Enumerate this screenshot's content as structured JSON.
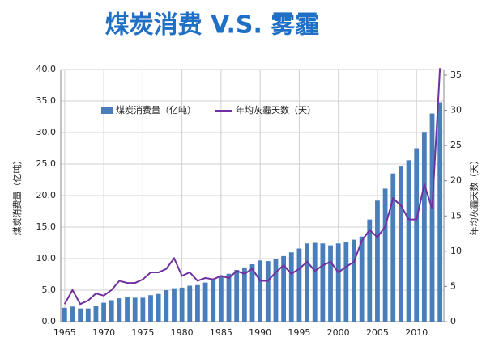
{
  "chart_data": {
    "type": "bar_line",
    "title": "煤炭消费 V.S. 雾霾",
    "ylabel": "煤炭消费量（亿吨）",
    "y2label": "年均灰霾天数（天）",
    "x": [
      1965,
      1966,
      1967,
      1968,
      1969,
      1970,
      1971,
      1972,
      1973,
      1974,
      1975,
      1976,
      1977,
      1978,
      1979,
      1980,
      1981,
      1982,
      1983,
      1984,
      1985,
      1986,
      1987,
      1988,
      1989,
      1990,
      1991,
      1992,
      1993,
      1994,
      1995,
      1996,
      1997,
      1998,
      1999,
      2000,
      2001,
      2002,
      2003,
      2004,
      2005,
      2006,
      2007,
      2008,
      2009,
      2010,
      2011,
      2012,
      2013
    ],
    "series": [
      {
        "name": "煤炭消费量（亿吨）",
        "kind": "bar",
        "color": "#4a7ebb",
        "values": [
          2.2,
          2.4,
          2.1,
          2.1,
          2.5,
          3.0,
          3.4,
          3.7,
          3.9,
          3.8,
          3.8,
          4.2,
          4.4,
          5.0,
          5.3,
          5.4,
          5.7,
          5.8,
          6.2,
          6.7,
          7.2,
          7.6,
          8.2,
          8.6,
          9.1,
          9.7,
          9.6,
          10.0,
          10.4,
          11.0,
          11.6,
          12.4,
          12.5,
          12.4,
          12.1,
          12.4,
          12.6,
          13.0,
          13.5,
          16.2,
          19.2,
          21.1,
          23.5,
          24.6,
          25.6,
          27.5,
          30.1,
          33.0,
          34.8
        ]
      },
      {
        "name": "年均灰霾天数（天）",
        "kind": "line",
        "axis": "y2",
        "color": "#7030a0",
        "values": [
          2.5,
          4.5,
          2.5,
          3.0,
          4.0,
          3.7,
          4.5,
          5.8,
          5.5,
          5.5,
          6.0,
          7.0,
          7.0,
          7.5,
          9.0,
          6.5,
          7.0,
          5.8,
          6.2,
          6.0,
          6.5,
          6.2,
          7.2,
          6.8,
          7.5,
          5.8,
          5.8,
          7.0,
          8.0,
          6.8,
          7.5,
          8.5,
          7.2,
          8.0,
          8.5,
          7.0,
          7.8,
          8.5,
          11.5,
          13.0,
          12.0,
          13.5,
          17.5,
          16.5,
          14.5,
          14.5,
          19.5,
          16.0,
          36.0
        ]
      }
    ],
    "xlim": [
      1964.5,
      2013.5
    ],
    "xticks": [
      1965,
      1970,
      1975,
      1980,
      1985,
      1990,
      1995,
      2000,
      2005,
      2010
    ],
    "ylim": [
      0,
      40
    ],
    "yticks": [
      {
        "value": 0,
        "label": "0.0"
      },
      {
        "value": 5,
        "label": "5.0"
      },
      {
        "value": 10,
        "label": "10.0"
      },
      {
        "value": 15,
        "label": "15.0"
      },
      {
        "value": 20,
        "label": "20.0"
      },
      {
        "value": 25,
        "label": "25.0"
      },
      {
        "value": 30,
        "label": "30.0"
      },
      {
        "value": 35,
        "label": "35.0"
      },
      {
        "value": 40,
        "label": "40.0"
      }
    ],
    "y2lim": [
      0,
      35.8
    ],
    "y2ticks": [
      0,
      5,
      10,
      15,
      20,
      25,
      30,
      35
    ],
    "grid": true
  }
}
